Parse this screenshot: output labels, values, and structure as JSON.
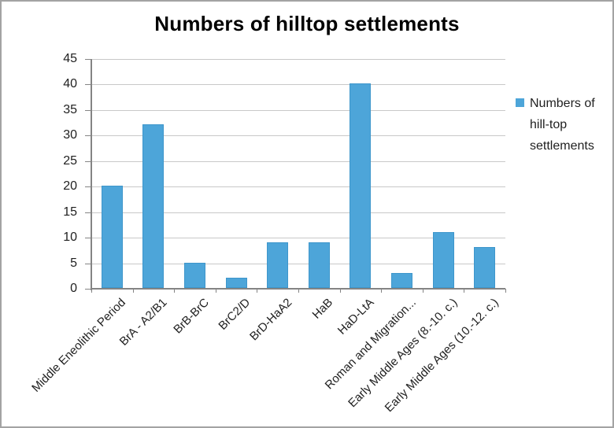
{
  "chart": {
    "title": "Numbers of hilltop settlements"
  },
  "chart_data": {
    "type": "bar",
    "title": "Numbers of hilltop settlements",
    "categories": [
      "Middle Eneolithic Period",
      "BrA - A2/B1",
      "BrB-BrC",
      "BrC2/D",
      "BrD-HaA2",
      "HaB",
      "HaD-LtA",
      "Roman and Migration...",
      "Early Middle Ages (8.-10. c.)",
      "Early Middle Ages (10.-12. c.)"
    ],
    "values": [
      20,
      32,
      5,
      2,
      9,
      9,
      40,
      3,
      11,
      8
    ],
    "series_name": "Numbers of hill-top settlements",
    "legend_lines": [
      "Numbers of",
      "hill-top",
      "settlements"
    ],
    "legend_position": "right",
    "xlabel": "",
    "ylabel": "",
    "ylim": [
      0,
      45
    ],
    "yticks": [
      0,
      5,
      10,
      15,
      20,
      25,
      30,
      35,
      40,
      45
    ],
    "grid": true,
    "bar_color": "#4DA5D9",
    "bar_border_color": "#3E96CB"
  },
  "colors": {
    "background": "#FFFFFF",
    "outer_border": "#A3A3A3",
    "gridline": "#C8C8C8",
    "axis": "#848484",
    "text": "#1F1F1F",
    "title_text": "#000000"
  }
}
